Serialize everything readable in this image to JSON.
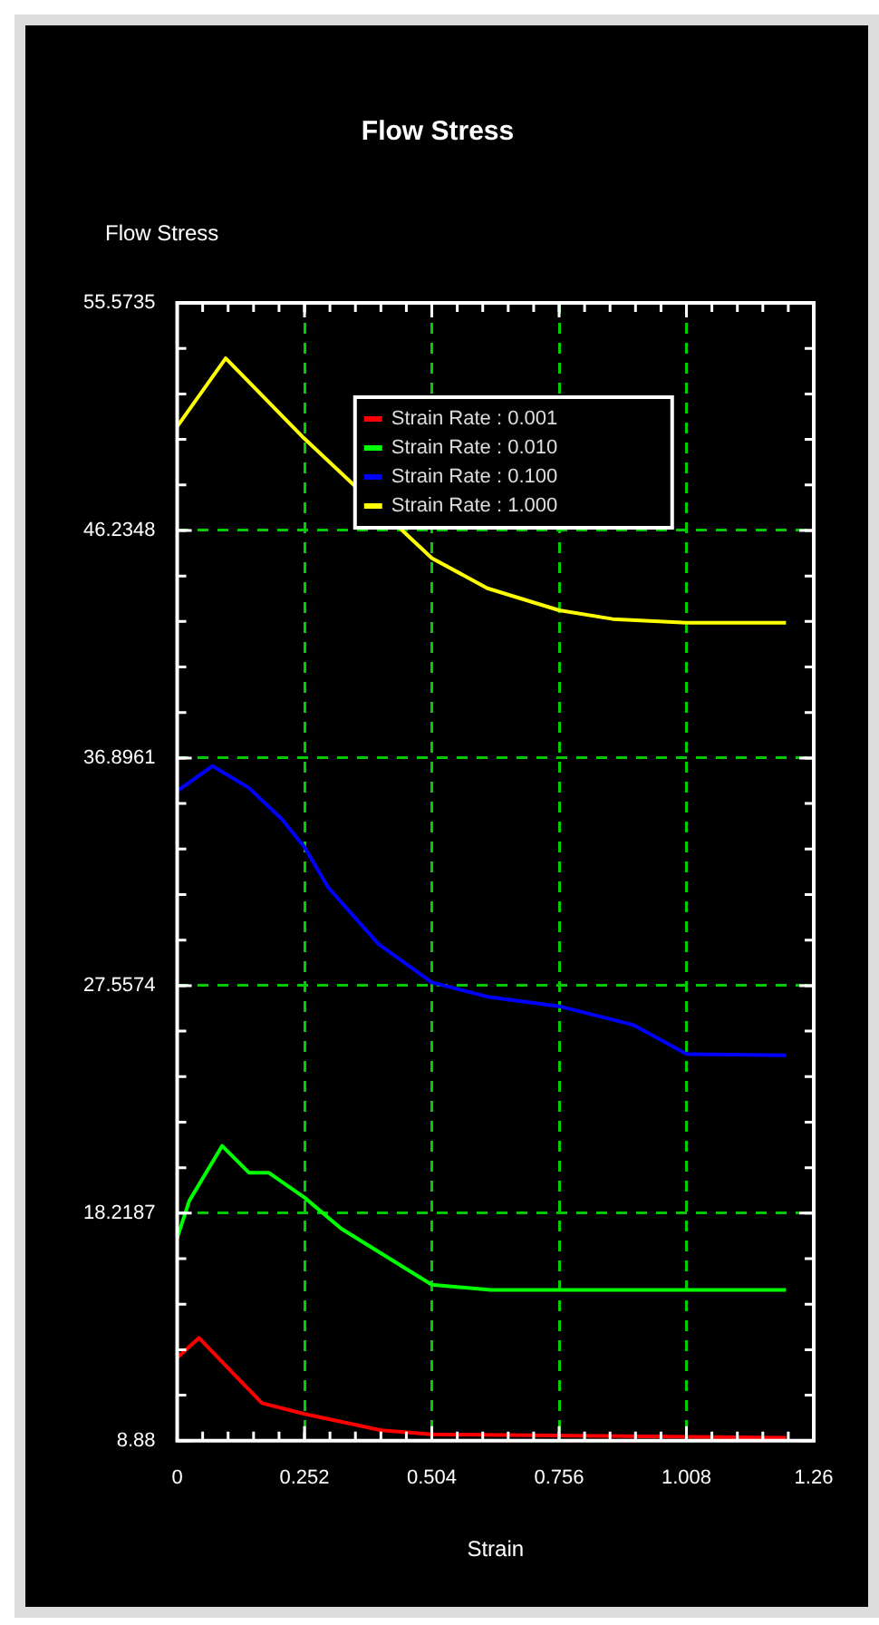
{
  "chart_data": {
    "type": "line",
    "title": "Flow Stress",
    "xlabel": "Strain",
    "ylabel": "Flow Stress",
    "xlim": [
      0,
      1.26
    ],
    "xticks": [
      0,
      0.252,
      0.504,
      0.756,
      1.008,
      1.26
    ],
    "ylim": [
      8.88,
      55.5735
    ],
    "yticks": [
      8.88,
      18.2187,
      27.5574,
      36.8961,
      46.2348,
      55.5735
    ],
    "grid": true,
    "legend": "top",
    "marker": "none",
    "line_style": "solid",
    "series": [
      {
        "name": "Strain Rate : 0.001",
        "color": "#ff0000",
        "x": [
          0,
          0.043,
          0.168,
          0.252,
          0.404,
          0.504,
          1.205
        ],
        "values": [
          12.29,
          13.1,
          10.42,
          9.98,
          9.31,
          9.14,
          9.0
        ]
      },
      {
        "name": "Strain Rate : 0.010",
        "color": "#00ff00",
        "x": [
          0,
          0.024,
          0.089,
          0.142,
          0.181,
          0.252,
          0.325,
          0.504,
          0.621,
          1.205
        ],
        "values": [
          17.2,
          18.73,
          20.98,
          19.88,
          19.88,
          18.86,
          17.58,
          15.28,
          15.07,
          15.07
        ]
      },
      {
        "name": "Strain Rate : 0.100",
        "color": "#0000ff",
        "x": [
          0,
          0.07,
          0.142,
          0.207,
          0.252,
          0.299,
          0.398,
          0.504,
          0.614,
          0.756,
          0.902,
          1.008,
          1.205
        ],
        "values": [
          35.54,
          36.57,
          35.67,
          34.39,
          33.24,
          31.58,
          29.27,
          27.69,
          27.1,
          26.71,
          25.95,
          24.75,
          24.7
        ]
      },
      {
        "name": "Strain Rate : 1.000",
        "color": "#ffff00",
        "x": [
          0,
          0.096,
          0.252,
          0.504,
          0.614,
          0.756,
          0.862,
          1.008,
          1.205
        ],
        "values": [
          50.5,
          53.3,
          50.0,
          45.1,
          43.86,
          42.96,
          42.6,
          42.45,
          42.45
        ]
      }
    ]
  }
}
